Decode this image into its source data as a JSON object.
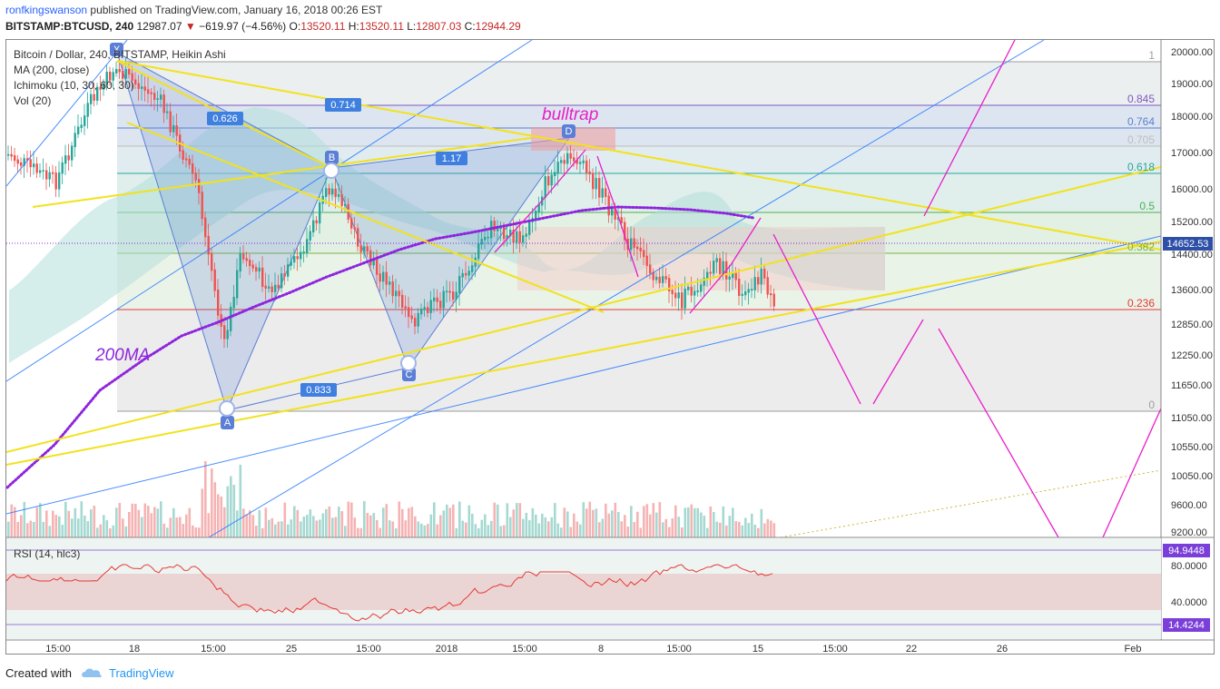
{
  "header": {
    "user": "ronfkingswanson",
    "published": " published on TradingView.com, January 16, 2018 00:26 EST",
    "symbol": "BITSTAMP:BTCUSD, 240",
    "price": "12987.07",
    "arrow": "▼",
    "change": "−619.97 (−4.56%)",
    "o_label": "O:",
    "o": "13520.11",
    "h_label": "H:",
    "h": "13520.11",
    "l_label": "L:",
    "l": "12807.03",
    "c_label": "C:",
    "c": "12944.29"
  },
  "legend": {
    "title": "Bitcoin / Dollar, 240, BITSTAMP, Heikin Ashi",
    "ma": "MA (200, close)",
    "ichimoku": "Ichimoku (10, 30, 60, 30)",
    "vol": "Vol (20)"
  },
  "price_axis": [
    "20000.00",
    "19000.00",
    "18000.00",
    "17000.00",
    "16000.00",
    "15200.00",
    "14400.00",
    "13600.00",
    "12850.00",
    "12250.00",
    "11650.00",
    "11050.00",
    "10550.00",
    "10050.00",
    "9600.00",
    "9200.00"
  ],
  "current_price": "14652.53",
  "fib_levels": [
    "1",
    "0.845",
    "0.764",
    "0.705",
    "0.618",
    "0.5",
    "0.382",
    "0.236",
    "0"
  ],
  "pattern_labels": {
    "x": "X",
    "a": "A",
    "b": "B",
    "c": "C",
    "d": "D"
  },
  "ratios": [
    "0.626",
    "0.714",
    "1.17",
    "0.833"
  ],
  "annotations": {
    "bulltrap": "bulltrap",
    "ma200": "200MA"
  },
  "rsi": {
    "label": "RSI (14, hlc3)",
    "axis": [
      "80.0000",
      "40.0000"
    ],
    "upper": "94.9448",
    "lower": "14.4244"
  },
  "time_axis": [
    "15:00",
    "18",
    "15:00",
    "25",
    "15:00",
    "2018",
    "15:00",
    "8",
    "15:00",
    "15",
    "15:00",
    "22",
    "26",
    "Feb"
  ],
  "footer": {
    "created": "Created with",
    "brand": "TradingView"
  },
  "colors": {
    "accent": "#2962ff",
    "bull": "#26a69a",
    "bear": "#ef5350",
    "fib_yellow": "#ffeb3b",
    "magenta": "#e91ec8",
    "ma": "#8e24dd",
    "cloud": "#b2dfdb"
  }
}
